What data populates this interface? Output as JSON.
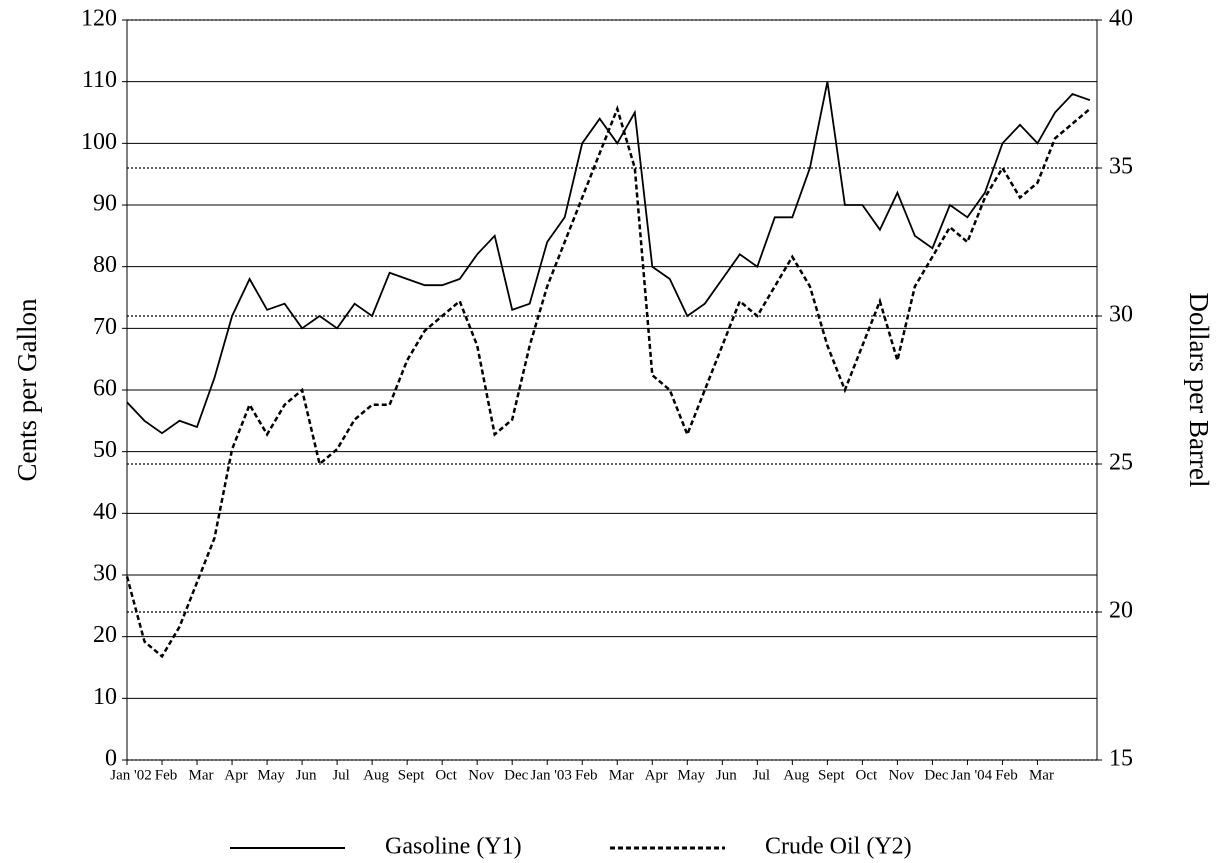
{
  "chart_data": {
    "type": "line",
    "y_label": "Cents per Gallon",
    "y2_label": "Dollars per Barrel",
    "x": [
      0,
      0.5,
      1,
      1.5,
      2,
      2.5,
      3,
      3.5,
      4,
      4.5,
      5,
      5.5,
      6,
      6.5,
      7,
      7.5,
      8,
      8.5,
      9,
      9.5,
      10,
      10.5,
      11,
      11.5,
      12,
      12.5,
      13,
      13.5,
      14,
      14.5,
      15,
      15.5,
      16,
      16.5,
      17,
      17.5,
      18,
      18.5,
      19,
      19.5,
      20,
      20.5,
      21,
      21.5,
      22,
      22.5,
      23,
      23.5,
      24,
      24.5,
      25,
      25.5,
      26,
      26.5,
      27,
      27.5
    ],
    "series": [
      {
        "name": "Gasoline (Y1)",
        "color": "#000000",
        "line_style": "solid",
        "values": [
          58,
          55,
          53,
          55,
          54,
          62,
          72,
          78,
          73,
          74,
          70,
          72,
          70,
          74,
          72,
          79,
          78,
          77,
          77,
          78,
          82,
          85,
          73,
          74,
          84,
          88,
          100,
          104,
          100,
          105,
          80,
          78,
          72,
          74,
          78,
          82,
          80,
          88,
          88,
          96,
          110,
          90,
          90,
          86,
          92,
          85,
          83,
          90,
          88,
          92,
          100,
          103,
          100,
          105,
          108,
          107
        ]
      },
      {
        "name": "Crude Oil (Y2)",
        "color": "#000000",
        "line_style": "dashed",
        "axis": "y2",
        "values": [
          21.2,
          19,
          18.5,
          19.5,
          21,
          22.5,
          25.5,
          27,
          26,
          27,
          27.5,
          25,
          25.5,
          26.5,
          27,
          27,
          28.5,
          29.5,
          30,
          30.5,
          29,
          26,
          26.5,
          29,
          31,
          32.5,
          34,
          35.5,
          37,
          35,
          28,
          27.5,
          26,
          27.5,
          29,
          30.5,
          30,
          31,
          32,
          31,
          29,
          27.5,
          29,
          30.5,
          28.5,
          31,
          32,
          33,
          32.5,
          34,
          35,
          34,
          34.5,
          36,
          36.5,
          37
        ]
      }
    ],
    "xlim": [
      0,
      27.7
    ],
    "xticks": [
      {
        "value": 0,
        "label": "Jan '02"
      },
      {
        "value": 1,
        "label": "Feb"
      },
      {
        "value": 2,
        "label": "Mar"
      },
      {
        "value": 3,
        "label": "Apr"
      },
      {
        "value": 4,
        "label": "May"
      },
      {
        "value": 5,
        "label": "Jun"
      },
      {
        "value": 6,
        "label": "Jul"
      },
      {
        "value": 7,
        "label": "Aug"
      },
      {
        "value": 8,
        "label": "Sept"
      },
      {
        "value": 9,
        "label": "Oct"
      },
      {
        "value": 10,
        "label": "Nov"
      },
      {
        "value": 11,
        "label": "Dec"
      },
      {
        "value": 12,
        "label": "Jan '03"
      },
      {
        "value": 13,
        "label": "Feb"
      },
      {
        "value": 14,
        "label": "Mar"
      },
      {
        "value": 15,
        "label": "Apr"
      },
      {
        "value": 16,
        "label": "May"
      },
      {
        "value": 17,
        "label": "Jun"
      },
      {
        "value": 18,
        "label": "Jul"
      },
      {
        "value": 19,
        "label": "Aug"
      },
      {
        "value": 20,
        "label": "Sept"
      },
      {
        "value": 21,
        "label": "Oct"
      },
      {
        "value": 22,
        "label": "Nov"
      },
      {
        "value": 23,
        "label": "Dec"
      },
      {
        "value": 24,
        "label": "Jan '04"
      },
      {
        "value": 25,
        "label": "Feb"
      },
      {
        "value": 26,
        "label": "Mar"
      }
    ],
    "ylim": [
      0,
      120
    ],
    "yticks": [
      0,
      10,
      20,
      30,
      40,
      50,
      60,
      70,
      80,
      90,
      100,
      110,
      120
    ],
    "y2lim": [
      15,
      40
    ],
    "y2ticks": [
      15,
      20,
      25,
      30,
      35,
      40
    ],
    "grid": true,
    "legend": "bottom"
  }
}
